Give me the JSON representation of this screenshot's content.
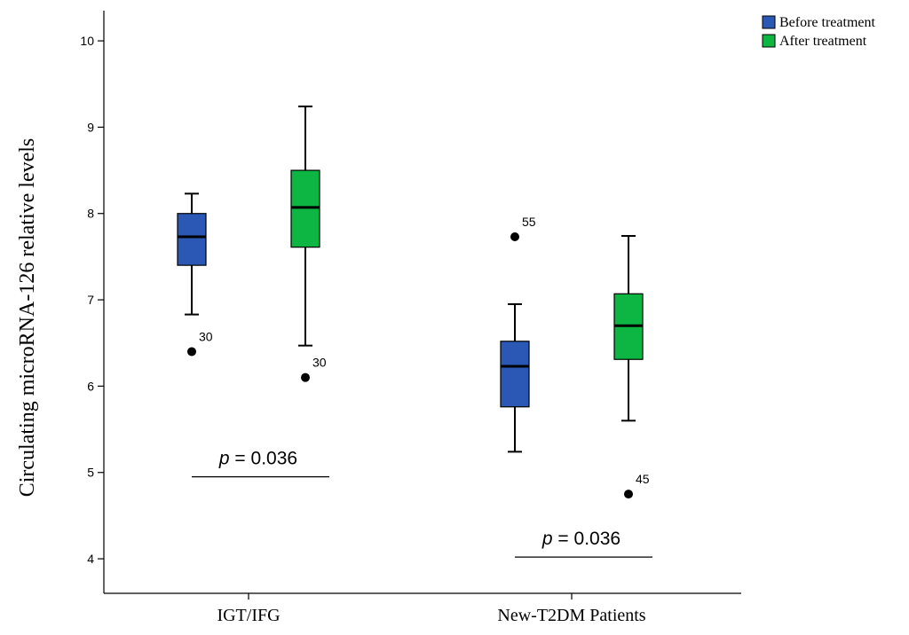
{
  "chart_data": {
    "type": "boxplot",
    "ylabel": "Circulating microRNA-126 relative levels",
    "xlabel": "",
    "ylim": [
      3.6,
      10.35
    ],
    "yticks": [
      4,
      5,
      6,
      7,
      8,
      9,
      10
    ],
    "ytick_labels": [
      "4",
      "5",
      "6",
      "7",
      "8",
      "9",
      "10"
    ],
    "categories": [
      "IGT/IFG",
      "New-T2DM Patients"
    ],
    "legend": {
      "position": "top-right",
      "entries": [
        {
          "name": "Before treatment",
          "color": "#2b57b5"
        },
        {
          "name": "After treatment",
          "color": "#0db642"
        }
      ]
    },
    "series": [
      {
        "name": "Before treatment",
        "color": "#2b57b5",
        "boxes": [
          {
            "whisker_low": 6.83,
            "q1": 7.4,
            "median": 7.73,
            "q3": 8.0,
            "whisker_high": 8.23
          },
          {
            "whisker_low": 5.24,
            "q1": 5.76,
            "median": 6.23,
            "q3": 6.52,
            "whisker_high": 6.95
          }
        ]
      },
      {
        "name": "After treatment",
        "color": "#0db642",
        "boxes": [
          {
            "whisker_low": 6.47,
            "q1": 7.61,
            "median": 8.07,
            "q3": 8.5,
            "whisker_high": 9.24
          },
          {
            "whisker_low": 5.6,
            "q1": 6.31,
            "median": 6.7,
            "q3": 7.07,
            "whisker_high": 7.74
          }
        ]
      }
    ],
    "outliers": [
      {
        "series": 0,
        "category": 0,
        "value": 6.4,
        "label": "30"
      },
      {
        "series": 1,
        "category": 0,
        "value": 6.1,
        "label": "30"
      },
      {
        "series": 0,
        "category": 1,
        "value": 7.73,
        "label": "55"
      },
      {
        "series": 1,
        "category": 1,
        "value": 4.75,
        "label": "45"
      }
    ],
    "annotations": [
      {
        "category": 0,
        "italic": "p",
        "text": " = 0.036",
        "y_value": 4.95
      },
      {
        "category": 1,
        "italic": "p",
        "text": " = 0.036",
        "y_value": 4.02
      }
    ]
  }
}
